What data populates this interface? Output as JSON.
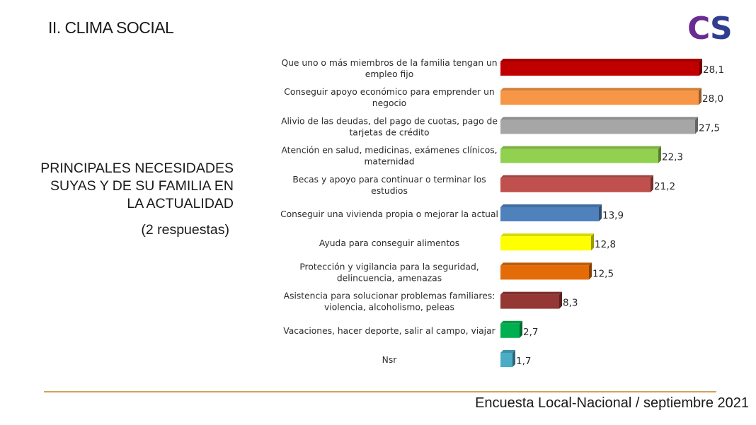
{
  "slide": {
    "title": "II. CLIMA SOCIAL",
    "logo_text": "CS",
    "heading_lines": [
      "PRINCIPALES NECESIDADES",
      "SUYAS Y DE SU FAMILIA EN",
      "LA ACTUALIDAD"
    ],
    "note": "(2 respuestas)",
    "footer": "Encuesta Local-Nacional / septiembre 2021"
  },
  "colors": {
    "logo_c": "#6a2c91",
    "logo_s": "#2f3e8f",
    "footer_rule": "#d4a05a"
  },
  "chart_data": {
    "type": "bar",
    "orientation": "horizontal",
    "categories": [
      [
        "Que uno o más miembros de la familia tengan un",
        "empleo fijo"
      ],
      [
        "Conseguir apoyo económico para emprender un",
        "negocio"
      ],
      [
        "Alivio de las deudas, del pago de cuotas, pago de",
        "tarjetas de crédito"
      ],
      [
        "Atención en salud, medicinas, exámenes clínicos,",
        "maternidad"
      ],
      [
        "Becas y apoyo para continuar o terminar los",
        "estudios"
      ],
      [
        "Conseguir una vivienda propia o mejorar la actual"
      ],
      [
        "Ayuda para conseguir alimentos"
      ],
      [
        "Protección y vigilancia para la seguridad,",
        "delincuencia, amenazas"
      ],
      [
        "Asistencia para solucionar problemas familiares:",
        "violencia, alcoholismo, peleas"
      ],
      [
        "Vacaciones, hacer deporte, salir al campo, viajar"
      ],
      [
        "Nsr"
      ]
    ],
    "values": [
      28.1,
      28.0,
      27.5,
      22.3,
      21.2,
      13.9,
      12.8,
      12.5,
      8.3,
      2.7,
      1.7
    ],
    "value_labels": [
      "28,1",
      "28,0",
      "27,5",
      "22,3",
      "21,2",
      "13,9",
      "12,8",
      "12,5",
      "8,3",
      "2,7",
      "1,7"
    ],
    "bar_colors": [
      "#c00000",
      "#f79646",
      "#a6a6a6",
      "#92d050",
      "#c0504d",
      "#4f81bd",
      "#ffff00",
      "#e36c09",
      "#953735",
      "#00b050",
      "#4bacc6"
    ],
    "xlim": [
      0,
      28.1
    ],
    "grid": false,
    "legend": "none"
  }
}
